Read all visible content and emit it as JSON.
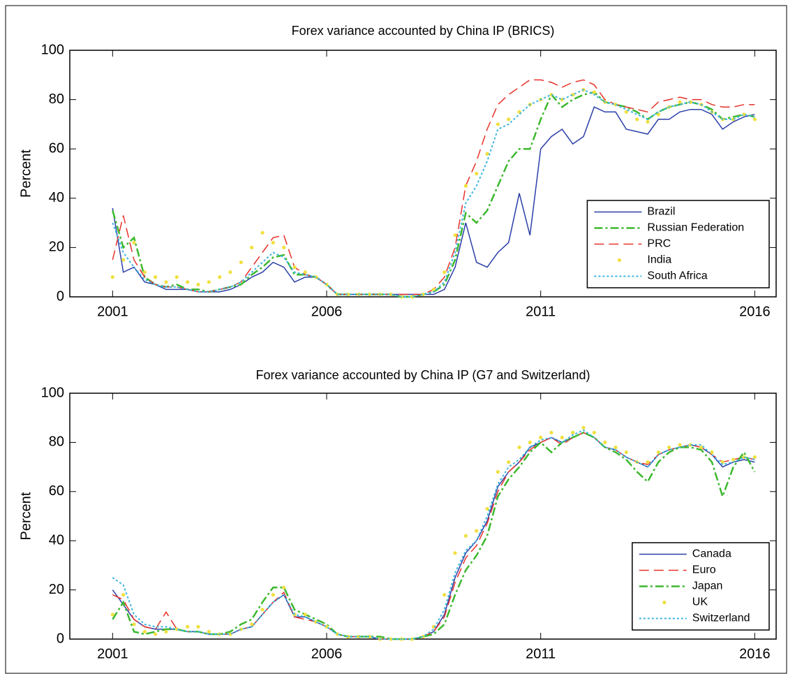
{
  "chart_data": [
    {
      "type": "line",
      "title": "Forex variance accounted by China IP (BRICS)",
      "ylabel": "Percent",
      "x": [
        2001,
        2001.25,
        2001.5,
        2001.75,
        2002,
        2002.25,
        2002.5,
        2002.75,
        2003,
        2003.25,
        2003.5,
        2003.75,
        2004,
        2004.25,
        2004.5,
        2004.75,
        2005,
        2005.25,
        2005.5,
        2005.75,
        2006,
        2006.25,
        2006.5,
        2006.75,
        2007,
        2007.25,
        2007.5,
        2007.75,
        2008,
        2008.25,
        2008.5,
        2008.75,
        2009,
        2009.25,
        2009.5,
        2009.75,
        2010,
        2010.25,
        2010.5,
        2010.75,
        2011,
        2011.25,
        2011.5,
        2011.75,
        2012,
        2012.25,
        2012.5,
        2012.75,
        2013,
        2013.25,
        2013.5,
        2013.75,
        2014,
        2014.25,
        2014.5,
        2014.75,
        2015,
        2015.25,
        2015.5,
        2015.75,
        2016
      ],
      "xlim": [
        2000,
        2016.5
      ],
      "xticks": [
        2001,
        2006,
        2011,
        2016
      ],
      "ylim": [
        0,
        100
      ],
      "yticks": [
        0,
        20,
        40,
        60,
        80,
        100
      ],
      "legend": "lower right",
      "series": [
        {
          "name": "Brazil",
          "color": "#2b3fa8",
          "style": "solid",
          "values": [
            36,
            10,
            12,
            6,
            5,
            3,
            3,
            3,
            2,
            2,
            2,
            3,
            5,
            8,
            10,
            14,
            12,
            6,
            8,
            8,
            5,
            1,
            1,
            1,
            1,
            1,
            1,
            1,
            1,
            1,
            1,
            3,
            12,
            30,
            14,
            12,
            18,
            22,
            42,
            25,
            60,
            65,
            68,
            62,
            65,
            77,
            75,
            75,
            68,
            67,
            66,
            72,
            72,
            75,
            76,
            76,
            74,
            68,
            71,
            73,
            74
          ]
        },
        {
          "name": "Russian Federation",
          "color": "#3cb82e",
          "style": "dashdot",
          "values": [
            35,
            20,
            24,
            8,
            5,
            4,
            5,
            3,
            3,
            2,
            3,
            4,
            5,
            9,
            12,
            16,
            17,
            9,
            9,
            8,
            5,
            1,
            1,
            1,
            1,
            1,
            1,
            0,
            0,
            1,
            2,
            5,
            15,
            34,
            30,
            35,
            45,
            55,
            60,
            60,
            72,
            82,
            77,
            80,
            82,
            83,
            79,
            78,
            77,
            75,
            72,
            75,
            77,
            78,
            79,
            78,
            76,
            72,
            73,
            74,
            73
          ]
        },
        {
          "name": "PRC",
          "color": "#e8322a",
          "style": "dashed",
          "values": [
            15,
            33,
            15,
            8,
            5,
            4,
            4,
            3,
            2,
            2,
            3,
            4,
            6,
            12,
            18,
            24,
            25,
            12,
            9,
            8,
            5,
            1,
            1,
            1,
            1,
            1,
            1,
            1,
            1,
            1,
            3,
            8,
            20,
            45,
            55,
            68,
            78,
            82,
            85,
            88,
            88,
            87,
            85,
            87,
            88,
            86,
            80,
            78,
            77,
            76,
            75,
            79,
            80,
            81,
            80,
            80,
            78,
            77,
            77,
            78,
            78
          ]
        },
        {
          "name": "India",
          "color": "#f0e040",
          "style": "dots",
          "values": [
            8,
            15,
            22,
            10,
            8,
            6,
            8,
            6,
            5,
            6,
            8,
            10,
            14,
            20,
            26,
            22,
            20,
            12,
            10,
            8,
            5,
            1,
            1,
            1,
            1,
            1,
            1,
            0,
            0,
            1,
            3,
            10,
            25,
            45,
            50,
            58,
            70,
            72,
            75,
            78,
            80,
            82,
            80,
            82,
            84,
            83,
            79,
            78,
            75,
            72,
            71,
            74,
            77,
            79,
            79,
            78,
            75,
            72,
            72,
            74,
            72
          ]
        },
        {
          "name": "South Africa",
          "color": "#3cb4e0",
          "style": "dotted",
          "values": [
            30,
            18,
            12,
            7,
            5,
            4,
            4,
            3,
            2,
            2,
            3,
            4,
            6,
            10,
            14,
            18,
            16,
            10,
            9,
            8,
            5,
            1,
            1,
            1,
            1,
            1,
            1,
            0,
            0,
            1,
            2,
            6,
            18,
            38,
            45,
            55,
            68,
            70,
            74,
            78,
            80,
            82,
            80,
            82,
            84,
            82,
            79,
            78,
            76,
            74,
            72,
            75,
            77,
            78,
            79,
            78,
            75,
            72,
            72,
            74,
            73
          ]
        }
      ]
    },
    {
      "type": "line",
      "title": "Forex variance accounted by China IP (G7 and Switzerland)",
      "ylabel": "Percent",
      "x": [
        2001,
        2001.25,
        2001.5,
        2001.75,
        2002,
        2002.25,
        2002.5,
        2002.75,
        2003,
        2003.25,
        2003.5,
        2003.75,
        2004,
        2004.25,
        2004.5,
        2004.75,
        2005,
        2005.25,
        2005.5,
        2005.75,
        2006,
        2006.25,
        2006.5,
        2006.75,
        2007,
        2007.25,
        2007.5,
        2007.75,
        2008,
        2008.25,
        2008.5,
        2008.75,
        2009,
        2009.25,
        2009.5,
        2009.75,
        2010,
        2010.25,
        2010.5,
        2010.75,
        2011,
        2011.25,
        2011.5,
        2011.75,
        2012,
        2012.25,
        2012.5,
        2012.75,
        2013,
        2013.25,
        2013.5,
        2013.75,
        2014,
        2014.25,
        2014.5,
        2014.75,
        2015,
        2015.25,
        2015.5,
        2015.75,
        2016
      ],
      "xlim": [
        2000,
        2016.5
      ],
      "xticks": [
        2001,
        2006,
        2011,
        2016
      ],
      "ylim": [
        0,
        100
      ],
      "yticks": [
        0,
        20,
        40,
        60,
        80,
        100
      ],
      "legend": "lower right",
      "series": [
        {
          "name": "Canada",
          "color": "#2b3fa8",
          "style": "solid",
          "values": [
            20,
            14,
            8,
            5,
            4,
            4,
            4,
            3,
            3,
            2,
            2,
            2,
            4,
            5,
            10,
            15,
            18,
            9,
            9,
            7,
            5,
            2,
            1,
            1,
            1,
            0,
            0,
            0,
            0,
            1,
            3,
            10,
            25,
            35,
            40,
            48,
            62,
            68,
            72,
            78,
            80,
            82,
            80,
            82,
            84,
            82,
            78,
            77,
            74,
            72,
            70,
            75,
            77,
            78,
            79,
            78,
            75,
            70,
            72,
            73,
            72
          ]
        },
        {
          "name": "Euro",
          "color": "#e8322a",
          "style": "dashed",
          "values": [
            18,
            16,
            8,
            5,
            4,
            11,
            4,
            3,
            3,
            2,
            2,
            2,
            4,
            5,
            10,
            15,
            19,
            9,
            8,
            7,
            5,
            2,
            1,
            1,
            1,
            0,
            0,
            0,
            0,
            1,
            3,
            9,
            23,
            33,
            38,
            47,
            60,
            68,
            72,
            77,
            80,
            82,
            79,
            82,
            84,
            82,
            78,
            77,
            74,
            72,
            71,
            75,
            77,
            78,
            79,
            78,
            75,
            72,
            73,
            74,
            73
          ]
        },
        {
          "name": "Japan",
          "color": "#3cb82e",
          "style": "dashdot",
          "values": [
            8,
            15,
            3,
            2,
            3,
            4,
            4,
            3,
            3,
            2,
            2,
            3,
            6,
            8,
            15,
            21,
            21,
            12,
            10,
            8,
            6,
            2,
            1,
            1,
            1,
            1,
            0,
            0,
            0,
            1,
            2,
            6,
            18,
            28,
            34,
            42,
            58,
            65,
            70,
            76,
            80,
            76,
            80,
            82,
            84,
            82,
            78,
            76,
            73,
            68,
            64,
            72,
            76,
            78,
            78,
            77,
            72,
            58,
            70,
            76,
            68
          ]
        },
        {
          "name": "UK",
          "color": "#f0e040",
          "style": "dots",
          "values": [
            10,
            18,
            6,
            3,
            2,
            3,
            4,
            5,
            5,
            3,
            2,
            2,
            4,
            6,
            12,
            18,
            21,
            10,
            10,
            7,
            5,
            2,
            1,
            1,
            1,
            0,
            0,
            0,
            0,
            1,
            5,
            18,
            35,
            42,
            44,
            53,
            68,
            72,
            78,
            80,
            82,
            84,
            82,
            84,
            86,
            84,
            80,
            78,
            76,
            72,
            72,
            76,
            78,
            79,
            79,
            78,
            76,
            72,
            73,
            74,
            74
          ]
        },
        {
          "name": "Switzerland",
          "color": "#3cb4e0",
          "style": "dotted",
          "values": [
            25,
            22,
            10,
            6,
            5,
            5,
            4,
            3,
            3,
            2,
            2,
            2,
            4,
            5,
            10,
            15,
            18,
            10,
            9,
            7,
            5,
            2,
            1,
            1,
            1,
            0,
            0,
            0,
            0,
            1,
            4,
            12,
            27,
            36,
            40,
            50,
            63,
            70,
            73,
            78,
            81,
            82,
            80,
            83,
            85,
            82,
            78,
            77,
            74,
            72,
            70,
            75,
            77,
            78,
            79,
            79,
            75,
            71,
            72,
            74,
            73
          ]
        }
      ]
    }
  ]
}
